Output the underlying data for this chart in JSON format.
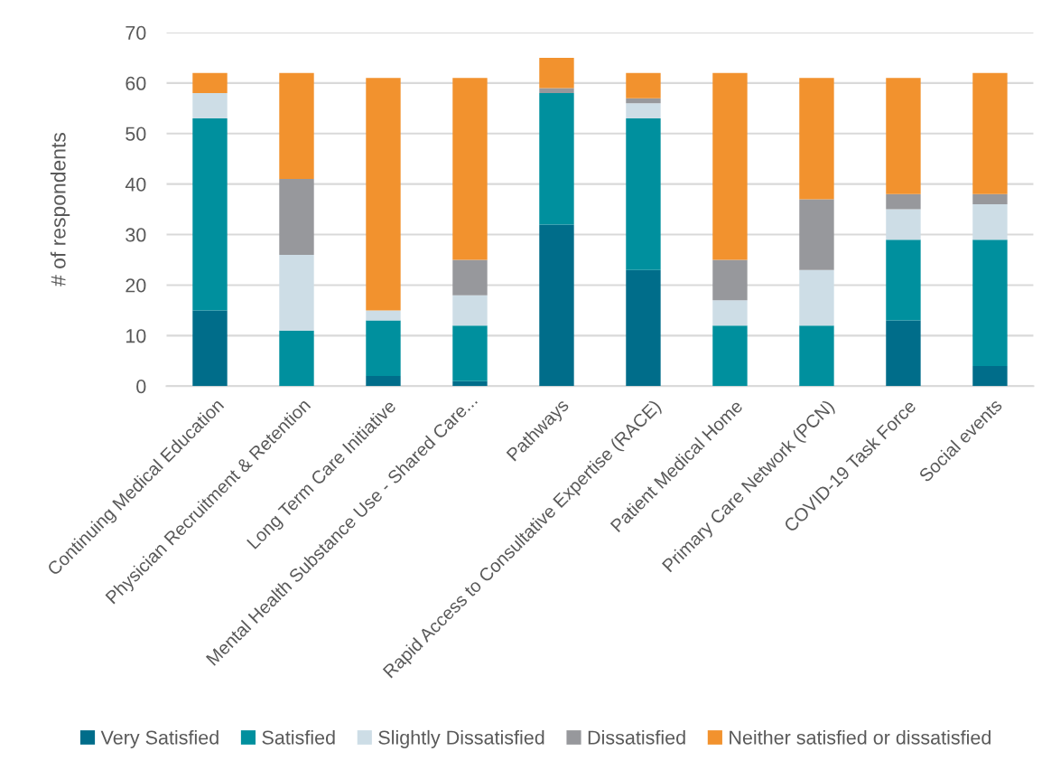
{
  "chart_data": {
    "type": "bar",
    "stacked": true,
    "ylabel": "# of respondents",
    "categories": [
      "Continuing Medical Education",
      "Physician Recruitment & Retention",
      "Long Term Care Initiative",
      "Mental Health Substance Use - Shared Care...",
      "Pathways",
      "Rapid Access to Consultative Expertise (RACE)",
      "Patient Medical Home",
      "Primary Care Network (PCN)",
      "COVID-19 Task Force",
      "Social events"
    ],
    "series": [
      {
        "name": "Very Satisfied",
        "color": "#006d8a",
        "values": [
          15,
          0,
          2,
          1,
          32,
          23,
          0,
          0,
          13,
          4
        ]
      },
      {
        "name": "Satisfied",
        "color": "#00909e",
        "values": [
          38,
          11,
          11,
          11,
          26,
          30,
          12,
          12,
          16,
          25
        ]
      },
      {
        "name": "Slightly Dissatisfied",
        "color": "#cddde6",
        "values": [
          5,
          15,
          2,
          6,
          0,
          3,
          5,
          11,
          6,
          7
        ]
      },
      {
        "name": "Dissatisfied",
        "color": "#97989c",
        "values": [
          0,
          15,
          0,
          7,
          1,
          1,
          8,
          14,
          3,
          2
        ]
      },
      {
        "name": "Neither satisfied or dissatisfied",
        "color": "#f2922e",
        "values": [
          4,
          21,
          46,
          36,
          6,
          5,
          37,
          24,
          23,
          24
        ]
      }
    ],
    "ylim": [
      0,
      70
    ],
    "yticks": [
      0,
      10,
      20,
      30,
      40,
      50,
      60,
      70
    ],
    "grid": "y",
    "legend": "bottom"
  }
}
